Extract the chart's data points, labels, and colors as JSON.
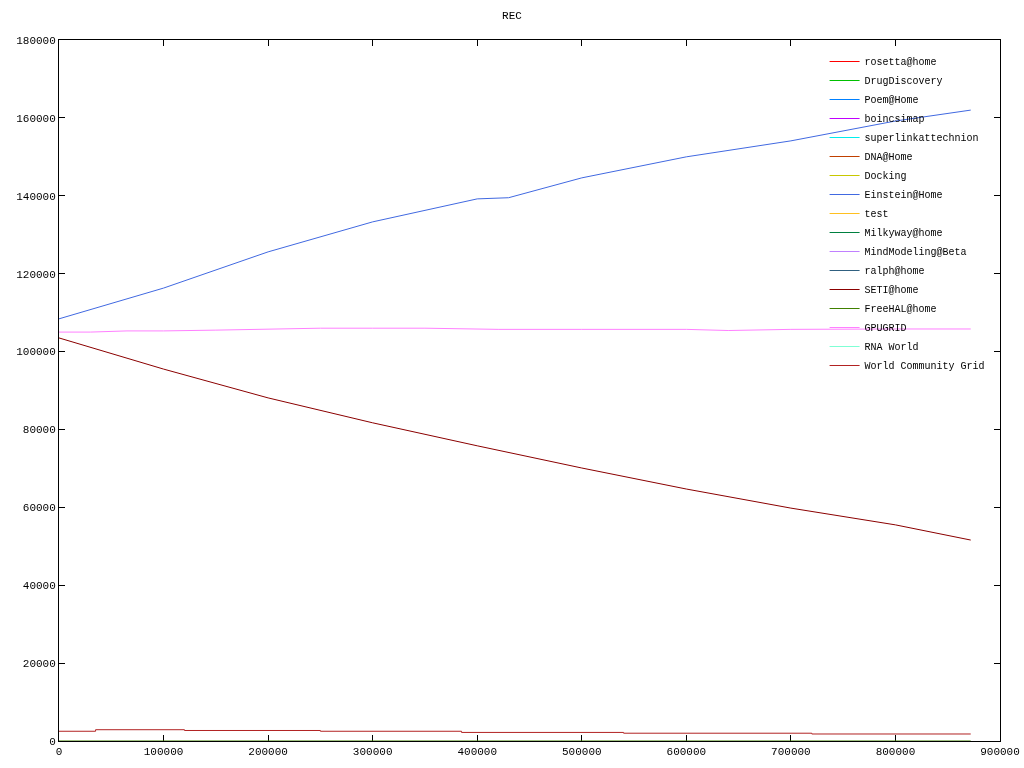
{
  "chart_data": {
    "type": "line",
    "title": "REC",
    "xlim": [
      0,
      900000
    ],
    "xticks": [
      0,
      100000,
      200000,
      300000,
      400000,
      500000,
      600000,
      700000,
      800000,
      900000
    ],
    "ylim": [
      0,
      180000
    ],
    "yticks": [
      0,
      20000,
      40000,
      60000,
      80000,
      100000,
      120000,
      140000,
      160000,
      180000
    ],
    "grid": false,
    "legend": "top right",
    "series": [
      {
        "name": "rosetta@home",
        "color": "#ff0000"
      },
      {
        "name": "DrugDiscovery",
        "color": "#00c000"
      },
      {
        "name": "Poem@Home",
        "color": "#0080ff"
      },
      {
        "name": "boincsimap",
        "color": "#c000ff"
      },
      {
        "name": "superlinkattechnion",
        "color": "#00eeee"
      },
      {
        "name": "DNA@Home",
        "color": "#c04000"
      },
      {
        "name": "Docking",
        "color": "#c8c800"
      },
      {
        "name": "Einstein@Home",
        "color": "#4169e1",
        "x": [
          0,
          100000,
          200000,
          300000,
          400000,
          430000,
          500000,
          600000,
          700000,
          800000,
          872000
        ],
        "values": [
          108400,
          116300,
          125600,
          133300,
          139200,
          139500,
          144600,
          150000,
          154100,
          159200,
          162000
        ]
      },
      {
        "name": "test",
        "color": "#ffc020"
      },
      {
        "name": "Milkyway@home",
        "color": "#008040"
      },
      {
        "name": "MindModeling@Beta",
        "color": "#c080ff"
      },
      {
        "name": "ralph@home",
        "color": "#306080"
      },
      {
        "name": "SETI@home",
        "color": "#8b0000",
        "x": [
          0,
          100000,
          200000,
          300000,
          400000,
          500000,
          600000,
          700000,
          800000,
          872000
        ],
        "values": [
          103500,
          95500,
          88100,
          81700,
          75800,
          70100,
          64700,
          59800,
          55500,
          51600
        ]
      },
      {
        "name": "FreeHAL@home",
        "color": "#408000",
        "x": [
          0,
          872000
        ],
        "values": [
          0,
          0
        ]
      },
      {
        "name": "GPUGRID",
        "color": "#ff80ff",
        "x": [
          0,
          30000,
          65000,
          100000,
          150000,
          250000,
          300000,
          350000,
          420000,
          500000,
          600000,
          640000,
          700000,
          800000,
          872000
        ],
        "values": [
          105000,
          105000,
          105300,
          105300,
          105500,
          106000,
          106000,
          106000,
          105700,
          105700,
          105700,
          105400,
          105700,
          105800,
          105800
        ]
      },
      {
        "name": "RNA World",
        "color": "#7fffd4"
      },
      {
        "name": "World Community Grid",
        "color": "#b22222",
        "type": "step",
        "x": [
          0,
          35000,
          120000,
          250000,
          385000,
          540000,
          720000,
          872000
        ],
        "values": [
          2500,
          2900,
          2700,
          2500,
          2200,
          2000,
          1800,
          1800
        ]
      }
    ]
  }
}
